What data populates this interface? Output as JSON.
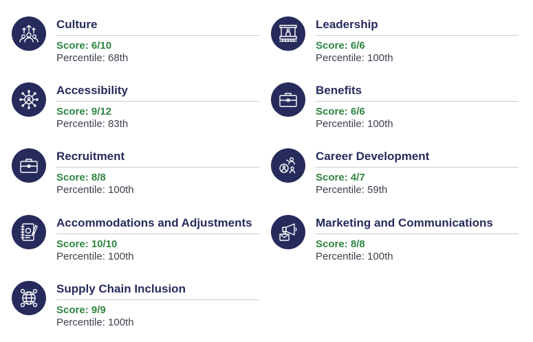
{
  "categories": [
    {
      "title": "Culture",
      "score": "Score: 6/10",
      "percentile": "Percentile: 68th",
      "icon": "people-growth-icon"
    },
    {
      "title": "Leadership",
      "score": "Score: 6/6",
      "percentile": "Percentile: 100th",
      "icon": "podium-icon"
    },
    {
      "title": "Accessibility",
      "score": "Score: 9/12",
      "percentile": "Percentile: 83th",
      "icon": "network-person-icon"
    },
    {
      "title": "Benefits",
      "score": "Score: 6/6",
      "percentile": "Percentile: 100th",
      "icon": "briefcase-icon"
    },
    {
      "title": "Recruitment",
      "score": "Score: 8/8",
      "percentile": "Percentile: 100th",
      "icon": "briefcase-icon"
    },
    {
      "title": "Career Development",
      "score": "Score: 4/7",
      "percentile": "Percentile: 59th",
      "icon": "career-people-icon"
    },
    {
      "title": "Accommodations and Adjustments",
      "score": "Score: 10/10",
      "percentile": "Percentile: 100th",
      "icon": "notebook-pen-icon"
    },
    {
      "title": "Marketing and Communications",
      "score": "Score: 8/8",
      "percentile": "Percentile: 100th",
      "icon": "megaphone-mail-icon"
    },
    {
      "title": "Supply Chain Inclusion",
      "score": "Score: 9/9",
      "percentile": "Percentile: 100th",
      "icon": "globe-people-icon"
    }
  ],
  "colors": {
    "icon_bg": "#262b5c",
    "title": "#262b5c",
    "score": "#2e8540",
    "percentile": "#3b3f4a",
    "divider": "#c9cbd2"
  }
}
